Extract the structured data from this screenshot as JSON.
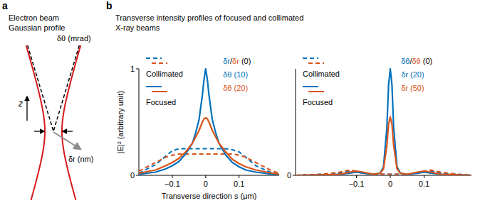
{
  "panel_a": {
    "label": "a",
    "title_lines": [
      "Electron beam",
      "Gaussian profile"
    ],
    "divergence_label": "δθ (mrad)",
    "axis_label": "z",
    "offset_label": "δr (nm)"
  },
  "panel_b": {
    "label": "b",
    "title_lines": [
      "Transverse intensity profiles of focused and collimated",
      "X-ray beams"
    ],
    "x_label": "Transverse direction s (μm)"
  },
  "chart_data": [
    {
      "type": "line",
      "ylabel": "|E|² (arbitrary unit)",
      "x": [
        -0.2,
        -0.15,
        -0.12,
        -0.1,
        -0.08,
        -0.06,
        -0.04,
        -0.03,
        -0.02,
        -0.01,
        -0.005,
        0,
        0.005,
        0.01,
        0.02,
        0.03,
        0.04,
        0.06,
        0.08,
        0.1,
        0.12,
        0.15,
        0.2,
        0.22
      ],
      "xlim": [
        -0.2,
        0.22
      ],
      "xticks": [
        {
          "value": -0.1,
          "label": "−0.1"
        },
        0,
        0.1
      ],
      "ylim": [
        0,
        1
      ],
      "yticks": [
        0,
        1
      ],
      "grid": false,
      "legend": "upper left",
      "series": [
        {
          "name": "Collimated",
          "color": "#0072bd",
          "line_style": "dashed",
          "values": [
            0.02,
            0.1,
            0.18,
            0.23,
            0.25,
            0.25,
            0.25,
            0.25,
            0.25,
            0.25,
            0.25,
            0.25,
            0.25,
            0.25,
            0.25,
            0.25,
            0.25,
            0.25,
            0.24,
            0.22,
            0.17,
            0.09,
            0.02,
            0.01
          ]
        },
        {
          "name": "Collimated",
          "color": "#d95319",
          "line_style": "dashed",
          "values": [
            0.04,
            0.12,
            0.17,
            0.19,
            0.2,
            0.2,
            0.2,
            0.2,
            0.2,
            0.2,
            0.2,
            0.2,
            0.2,
            0.2,
            0.2,
            0.2,
            0.2,
            0.2,
            0.2,
            0.19,
            0.17,
            0.12,
            0.04,
            0.02
          ]
        },
        {
          "name": "Focused",
          "color": "#0072bd",
          "line_style": "solid",
          "values": [
            0.01,
            0.03,
            0.06,
            0.09,
            0.13,
            0.2,
            0.3,
            0.4,
            0.52,
            0.75,
            0.9,
            1.0,
            0.9,
            0.75,
            0.52,
            0.4,
            0.3,
            0.19,
            0.12,
            0.08,
            0.05,
            0.03,
            0.01,
            0.005
          ]
        },
        {
          "name": "Focused",
          "color": "#d95319",
          "line_style": "solid",
          "values": [
            0.02,
            0.05,
            0.09,
            0.12,
            0.16,
            0.22,
            0.3,
            0.36,
            0.42,
            0.5,
            0.53,
            0.54,
            0.53,
            0.5,
            0.42,
            0.36,
            0.3,
            0.22,
            0.15,
            0.11,
            0.08,
            0.05,
            0.02,
            0.01
          ]
        }
      ],
      "annotations": [
        {
          "parts": [
            {
              "text": "δr",
              "color": "#0072bd"
            },
            {
              "text": "/",
              "color": "#000000"
            },
            {
              "text": "δr",
              "color": "#d95319"
            },
            {
              "text": " (0)",
              "color": "#000000"
            }
          ]
        },
        {
          "parts": [
            {
              "text": "δθ (10)",
              "color": "#0072bd"
            }
          ]
        },
        {
          "parts": [
            {
              "text": "δθ (20)",
              "color": "#d95319"
            }
          ]
        }
      ]
    },
    {
      "type": "line",
      "x": [
        -0.28,
        -0.2,
        -0.15,
        -0.12,
        -0.1,
        -0.08,
        -0.05,
        -0.03,
        -0.02,
        -0.01,
        -0.005,
        0,
        0.005,
        0.01,
        0.02,
        0.03,
        0.05,
        0.08,
        0.1,
        0.12,
        0.15,
        0.2,
        0.24
      ],
      "xlim": [
        -0.28,
        0.24
      ],
      "xticks": [
        {
          "value": -0.1,
          "label": "−0.1"
        },
        0,
        0.1
      ],
      "ylim": [
        0,
        1
      ],
      "yticks": [
        0
      ],
      "grid": false,
      "legend": "upper left",
      "series": [
        {
          "name": "Collimated",
          "color": "#0072bd",
          "line_style": "dashed",
          "values": [
            0,
            0.01,
            0.02,
            0.04,
            0.03,
            0.02,
            0.01,
            0.01,
            0.01,
            0.01,
            0.01,
            0.01,
            0.01,
            0.01,
            0.01,
            0.01,
            0.01,
            0.02,
            0.03,
            0.04,
            0.02,
            0.01,
            0
          ]
        },
        {
          "name": "Collimated",
          "color": "#d95319",
          "line_style": "dashed",
          "values": [
            0,
            0.01,
            0.03,
            0.05,
            0.04,
            0.02,
            0.01,
            0.01,
            0.01,
            0.01,
            0.01,
            0.01,
            0.01,
            0.01,
            0.01,
            0.01,
            0.01,
            0.02,
            0.04,
            0.05,
            0.03,
            0.01,
            0
          ]
        },
        {
          "name": "Focused",
          "color": "#0072bd",
          "line_style": "solid",
          "values": [
            0,
            0.005,
            0.01,
            0.02,
            0.03,
            0.02,
            0.01,
            0.02,
            0.08,
            0.45,
            0.85,
            1.0,
            0.85,
            0.45,
            0.08,
            0.02,
            0.01,
            0.02,
            0.03,
            0.02,
            0.01,
            0.005,
            0
          ]
        },
        {
          "name": "Focused",
          "color": "#d95319",
          "line_style": "solid",
          "values": [
            0,
            0.005,
            0.01,
            0.03,
            0.04,
            0.03,
            0.01,
            0.02,
            0.06,
            0.28,
            0.48,
            0.55,
            0.48,
            0.28,
            0.06,
            0.02,
            0.01,
            0.03,
            0.04,
            0.03,
            0.01,
            0.005,
            0
          ]
        }
      ],
      "annotations": [
        {
          "parts": [
            {
              "text": "δθ",
              "color": "#0072bd"
            },
            {
              "text": "/",
              "color": "#000000"
            },
            {
              "text": "δθ",
              "color": "#d95319"
            },
            {
              "text": " (0)",
              "color": "#000000"
            }
          ]
        },
        {
          "parts": [
            {
              "text": "δr (20)",
              "color": "#0072bd"
            }
          ]
        },
        {
          "parts": [
            {
              "text": "δr (50)",
              "color": "#d95319"
            }
          ]
        }
      ]
    }
  ]
}
